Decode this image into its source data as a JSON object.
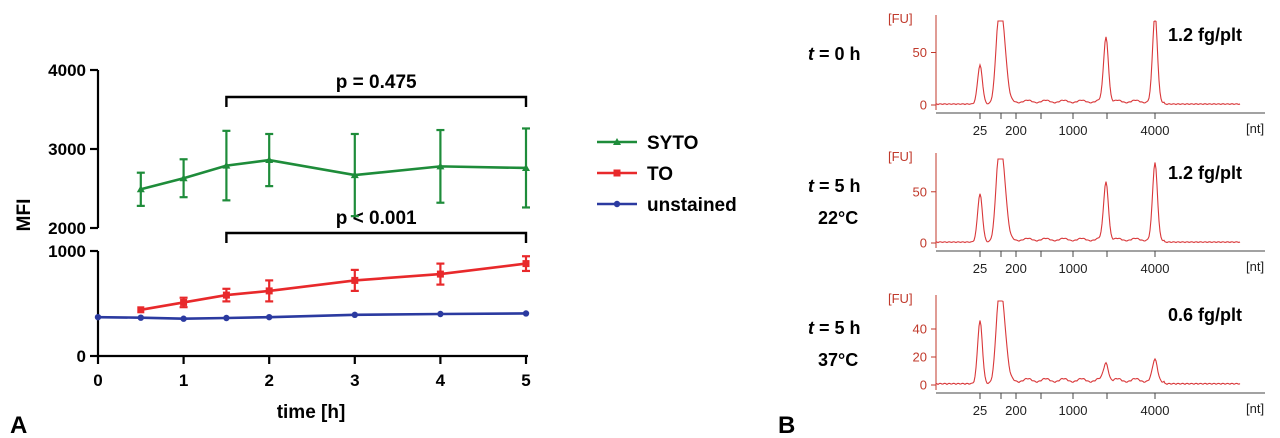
{
  "panels": {
    "a_label": "A",
    "b_label": "B"
  },
  "chart_data": [
    {
      "type": "line",
      "xlabel": "time [h]",
      "ylabel": "MFI",
      "x_ticks": [
        "0",
        "1",
        "2",
        "3",
        "4",
        "5"
      ],
      "y_ticks_lower": [
        "0",
        "1000"
      ],
      "y_ticks_upper": [
        "2000",
        "3000",
        "4000"
      ],
      "xlim": [
        0,
        5
      ],
      "ylim_lower": [
        0,
        1000
      ],
      "ylim_upper": [
        2000,
        4000
      ],
      "axis_break": true,
      "legend_position": "right",
      "series": [
        {
          "name": "SYTO",
          "color": "#1e8c3a",
          "marker": "triangle",
          "points": [
            {
              "x": 0.5,
              "y": 2490,
              "err": 210
            },
            {
              "x": 1,
              "y": 2630,
              "err": 240
            },
            {
              "x": 1.5,
              "y": 2790,
              "err": 440
            },
            {
              "x": 2,
              "y": 2860,
              "err": 330
            },
            {
              "x": 3,
              "y": 2670,
              "err": 520
            },
            {
              "x": 4,
              "y": 2780,
              "err": 460
            },
            {
              "x": 5,
              "y": 2760,
              "err": 500
            }
          ]
        },
        {
          "name": "TO",
          "color": "#e8292b",
          "marker": "square",
          "points": [
            {
              "x": 0.5,
              "y": 440,
              "err": 0
            },
            {
              "x": 1,
              "y": 510,
              "err": 45
            },
            {
              "x": 1.5,
              "y": 580,
              "err": 60
            },
            {
              "x": 2,
              "y": 620,
              "err": 100
            },
            {
              "x": 3,
              "y": 720,
              "err": 100
            },
            {
              "x": 4,
              "y": 780,
              "err": 100
            },
            {
              "x": 5,
              "y": 880,
              "err": 70
            }
          ]
        },
        {
          "name": "unstained",
          "color": "#2b3aa0",
          "marker": "circle",
          "points": [
            {
              "x": 0,
              "y": 370,
              "err": 0
            },
            {
              "x": 0.5,
              "y": 365,
              "err": 0
            },
            {
              "x": 1,
              "y": 355,
              "err": 0
            },
            {
              "x": 1.5,
              "y": 362,
              "err": 0
            },
            {
              "x": 2,
              "y": 370,
              "err": 0
            },
            {
              "x": 3,
              "y": 392,
              "err": 0
            },
            {
              "x": 4,
              "y": 400,
              "err": 0
            },
            {
              "x": 5,
              "y": 405,
              "err": 0
            }
          ]
        }
      ],
      "annotations": [
        {
          "text": "p = 0.475",
          "from_x": 1.5,
          "to_x": 5,
          "level": 3850,
          "axis": "upper"
        },
        {
          "text": "p < 0.001",
          "from_x": 1.5,
          "to_x": 5,
          "axis": "lower",
          "level": 1150
        }
      ]
    },
    {
      "type": "line",
      "ylabel": "[FU]",
      "xlabel": "[nt]",
      "x_ticks": [
        "25",
        "200",
        "1000",
        "4000"
      ],
      "color": "#d9383a",
      "traces": [
        {
          "condition_line1": "t = 0 h",
          "condition_line2": "",
          "value": "1.2 fg/plt",
          "y_ticks": [
            "0",
            "50"
          ],
          "ymax": 80,
          "peaks": [
            {
              "pos": 0.215,
              "h": 37
            },
            {
              "pos": 0.325,
              "h": 80
            },
            {
              "pos": 0.855,
              "h": 62
            },
            {
              "pos": 1.23,
              "h": 82
            }
          ]
        },
        {
          "condition_line1": "t = 5 h",
          "condition_line2": "22°C",
          "value": "1.2 fg/plt",
          "y_ticks": [
            "0",
            "50"
          ],
          "ymax": 82,
          "peaks": [
            {
              "pos": 0.215,
              "h": 47
            },
            {
              "pos": 0.325,
              "h": 82
            },
            {
              "pos": 0.855,
              "h": 57
            },
            {
              "pos": 1.23,
              "h": 74
            }
          ]
        },
        {
          "condition_line1": "t = 5 h",
          "condition_line2": "37°C",
          "value": "0.6 fg/plt",
          "y_ticks": [
            "0",
            "20",
            "40"
          ],
          "ymax": 60,
          "peaks": [
            {
              "pos": 0.215,
              "h": 45
            },
            {
              "pos": 0.325,
              "h": 58
            },
            {
              "pos": 0.855,
              "h": 13
            },
            {
              "pos": 1.23,
              "h": 14
            }
          ]
        }
      ]
    }
  ]
}
